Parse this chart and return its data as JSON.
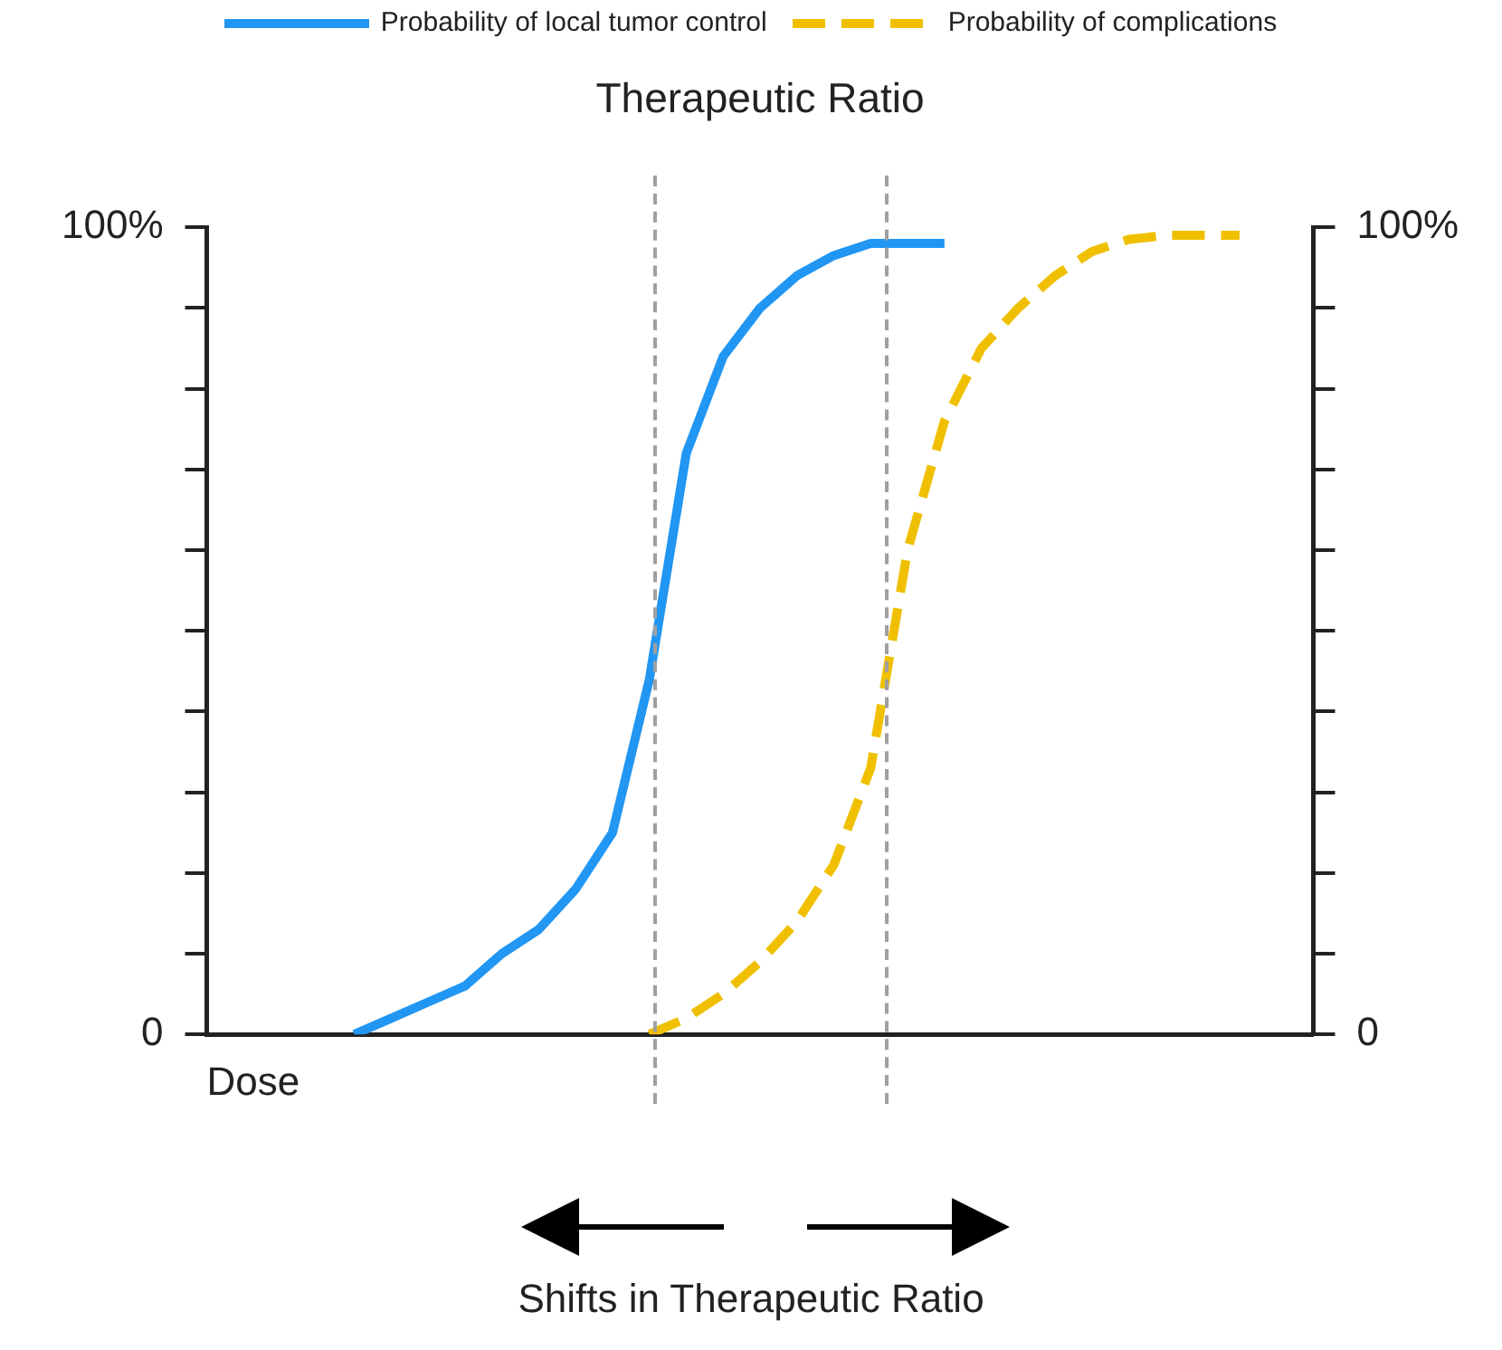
{
  "chart_data": {
    "type": "line",
    "title": "Therapeutic Ratio",
    "xlabel": "Dose",
    "categories": [
      null,
      null,
      null,
      null,
      null,
      null,
      null,
      null,
      null,
      null,
      null,
      null,
      null,
      null,
      null,
      null,
      null,
      null,
      null,
      null,
      null,
      null,
      null,
      null,
      null,
      null,
      null,
      null,
      null,
      null,
      null
    ],
    "ylim": [
      0,
      100
    ],
    "yticks": [
      {
        "value": 0,
        "label": "0"
      },
      {
        "value": 10,
        "label": null
      },
      {
        "value": 20,
        "label": null
      },
      {
        "value": 30,
        "label": null
      },
      {
        "value": 40,
        "label": null
      },
      {
        "value": 50,
        "label": null
      },
      {
        "value": 60,
        "label": null
      },
      {
        "value": 70,
        "label": null
      },
      {
        "value": 80,
        "label": null
      },
      {
        "value": 90,
        "label": null
      },
      {
        "value": 100,
        "label": "100%"
      }
    ],
    "y2lim": [
      0,
      100
    ],
    "y2ticks": [
      {
        "value": 0,
        "label": "0"
      },
      {
        "value": 10,
        "label": null
      },
      {
        "value": 20,
        "label": null
      },
      {
        "value": 30,
        "label": null
      },
      {
        "value": 40,
        "label": null
      },
      {
        "value": 50,
        "label": null
      },
      {
        "value": 60,
        "label": null
      },
      {
        "value": 70,
        "label": null
      },
      {
        "value": 80,
        "label": null
      },
      {
        "value": 90,
        "label": null
      },
      {
        "value": 100,
        "label": "100%"
      }
    ],
    "tick_labels": "y",
    "grid": false,
    "legend": "top",
    "marker": "none",
    "series": [
      {
        "name": "Probability of local tumor control",
        "color": "#2196f3",
        "line_style": "solid",
        "values": [
          null,
          null,
          null,
          null,
          0,
          2,
          4,
          6,
          10,
          13,
          18,
          25,
          44,
          72,
          84,
          90,
          94,
          96.5,
          98,
          98,
          98,
          null,
          null,
          null,
          null,
          null,
          null,
          null,
          null,
          null,
          null
        ]
      },
      {
        "name": "Probability of complications",
        "color": "#f0c000",
        "line_style": "dashed",
        "values": [
          null,
          null,
          null,
          null,
          null,
          null,
          null,
          null,
          null,
          null,
          null,
          null,
          0,
          2,
          5,
          9,
          14,
          21,
          33,
          60,
          76,
          85,
          90,
          94,
          97,
          98.5,
          99,
          99,
          99,
          null,
          null
        ]
      }
    ],
    "annotations": [
      "Shifts in Therapeutic Ratio"
    ]
  }
}
